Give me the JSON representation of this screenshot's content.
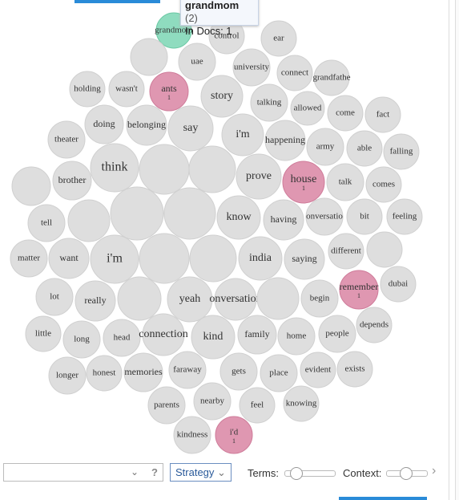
{
  "tooltip": {
    "term": "grandmom",
    "count": "(2)",
    "docs": "In Docs: 1"
  },
  "bubbles": [
    {
      "label": "grandmom"
    },
    {
      "label": "control"
    },
    {
      "label": "ear"
    },
    null,
    {
      "label": "uae"
    },
    {
      "label": "university"
    },
    {
      "label": "connect"
    },
    {
      "label": "grandfathe"
    },
    {
      "label": "holding"
    },
    {
      "label": "wasn't"
    },
    {
      "label": "ants",
      "count": "1"
    },
    {
      "label": "story"
    },
    {
      "label": "talking"
    },
    {
      "label": "allowed"
    },
    {
      "label": "come"
    },
    {
      "label": "fact"
    },
    {
      "label": "doing"
    },
    {
      "label": "belonging"
    },
    {
      "label": "say"
    },
    {
      "label": "i'm"
    },
    {
      "label": "happening"
    },
    {
      "label": "army"
    },
    {
      "label": "able"
    },
    {
      "label": "falling"
    },
    {
      "label": "theater"
    },
    {
      "label": "think"
    },
    null,
    null,
    {
      "label": "prove"
    },
    {
      "label": "house",
      "count": "1"
    },
    {
      "label": "talk"
    },
    {
      "label": "comes"
    },
    {
      "label": "brother"
    },
    null,
    {
      "label": "tell"
    },
    null,
    null,
    null,
    {
      "label": "know"
    },
    {
      "label": "having"
    },
    {
      "label": "onversatio"
    },
    {
      "label": "bit"
    },
    {
      "label": "feeling"
    },
    {
      "label": "matter"
    },
    {
      "label": "want"
    },
    {
      "label": "i'm"
    },
    null,
    null,
    {
      "label": "india"
    },
    {
      "label": "saying"
    },
    {
      "label": "different"
    },
    null,
    {
      "label": "lot"
    },
    {
      "label": "really"
    },
    null,
    {
      "label": "yeah"
    },
    {
      "label": "onversation"
    },
    null,
    {
      "label": "begin"
    },
    {
      "label": "remember",
      "count": "1"
    },
    {
      "label": "dubai"
    },
    {
      "label": "little"
    },
    {
      "label": "long"
    },
    {
      "label": "head"
    },
    {
      "label": "connection"
    },
    {
      "label": "kind"
    },
    {
      "label": "family"
    },
    {
      "label": "home"
    },
    {
      "label": "people"
    },
    {
      "label": "depends"
    },
    {
      "label": "longer"
    },
    {
      "label": "honest"
    },
    {
      "label": "memories"
    },
    {
      "label": "faraway"
    },
    {
      "label": "gets"
    },
    {
      "label": "place"
    },
    {
      "label": "evident"
    },
    {
      "label": "exists"
    },
    {
      "label": "parents"
    },
    {
      "label": "nearby"
    },
    {
      "label": "feel"
    },
    {
      "label": "knowing"
    },
    {
      "label": "kindness"
    },
    {
      "label": "i'd",
      "count": "1"
    }
  ],
  "toolbar": {
    "help": "?",
    "strategy": "Strategy",
    "terms": "Terms:",
    "context": "Context:"
  }
}
